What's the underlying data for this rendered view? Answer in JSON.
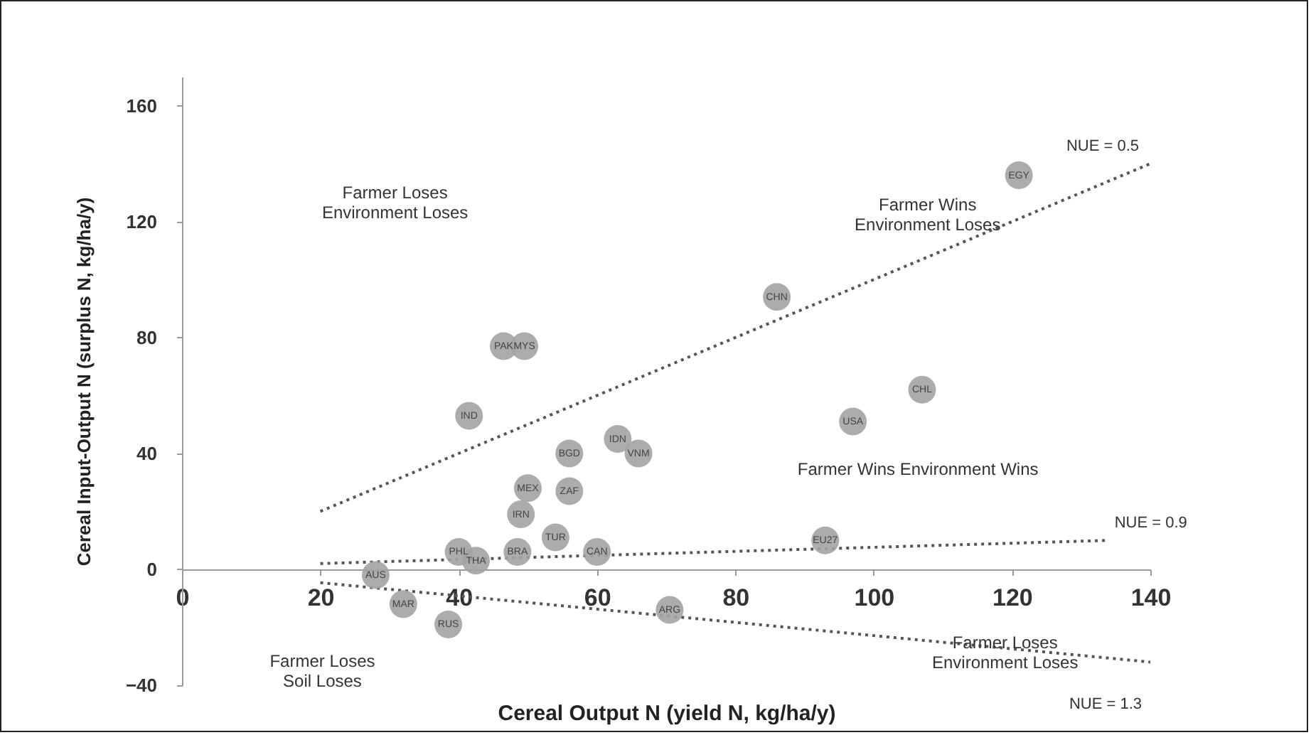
{
  "chart_data": {
    "type": "scatter",
    "xlabel": "Cereal Output N (yield  N, kg/ha/y)",
    "ylabel": "Cereal Input-Output N (surplus N, kg/ha/y)",
    "xlim": [
      0,
      140
    ],
    "ylim": [
      -40,
      170
    ],
    "xticks": [
      0,
      20,
      40,
      60,
      80,
      100,
      120,
      140
    ],
    "yticks": [
      -40,
      0,
      40,
      80,
      120,
      160
    ],
    "grid": false,
    "series": [
      {
        "type": "line",
        "name": "NUE = 0.5",
        "color": "#555555",
        "line_style": "dotted",
        "x": [
          20,
          140
        ],
        "values": [
          20,
          140
        ]
      },
      {
        "type": "line",
        "name": "NUE = 0.9",
        "color": "#555555",
        "line_style": "dotted",
        "x": [
          20,
          134
        ],
        "values": [
          2,
          10
        ]
      },
      {
        "type": "line",
        "name": "NUE = 1.3",
        "color": "#555555",
        "line_style": "dotted",
        "x": [
          20,
          140
        ],
        "values": [
          -4.6,
          -32
        ]
      },
      {
        "color": "#a3a3a3",
        "marker": "circle",
        "x": [
          121,
          86,
          107,
          97,
          46.5,
          49.5,
          41.5,
          56,
          63,
          66,
          50,
          56,
          49,
          54,
          48.5,
          40,
          42.5,
          60,
          28,
          32,
          38.5,
          70.5,
          93
        ],
        "values": [
          136,
          94,
          62,
          51,
          77,
          77,
          53,
          40,
          45,
          40,
          28,
          27,
          19,
          11,
          6,
          6,
          3,
          6,
          -2,
          -12,
          -19,
          -14,
          10
        ],
        "value_labels": [
          "EGY",
          "CHN",
          "CHL",
          "USA",
          "PAK",
          "MYS",
          "IND",
          "BGD",
          "IDN",
          "VNM",
          "MEX",
          "ZAF",
          "IRN",
          "TUR",
          "BRA",
          "PHL",
          "THA",
          "CAN",
          "AUS",
          "MAR",
          "RUS",
          "ARG",
          "EU27"
        ]
      }
    ],
    "annotations": [
      "Farmer Loses\nEnvironment Loses",
      "Farmer Wins\nEnvironment Loses",
      "Farmer Wins Environment Wins",
      "Farmer Loses\nSoil Loses",
      "Farmer Loses\nEnvironment Loses"
    ]
  }
}
